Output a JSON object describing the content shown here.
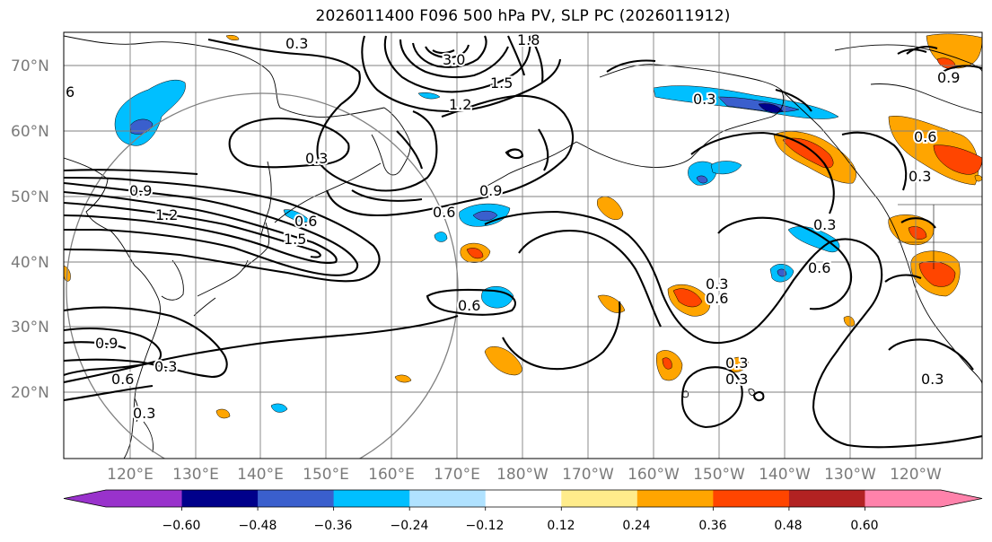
{
  "title": "2026011400 F096 500 hPa PV, SLP PC (2026011912)",
  "map": {
    "lat_ticks": [
      "70°N",
      "60°N",
      "50°N",
      "40°N",
      "30°N",
      "20°N"
    ],
    "lon_ticks": [
      "120°E",
      "130°E",
      "140°E",
      "150°E",
      "160°E",
      "170°E",
      "180°W",
      "170°W",
      "160°W",
      "150°W",
      "140°W",
      "130°W",
      "120°W"
    ],
    "contour_labels": [
      "6",
      "0.3",
      "3.0",
      "1.5",
      "1.8",
      "1.2",
      "0.3",
      "0.9",
      "1.2",
      "0.6",
      "1.5",
      "0.6",
      "0.9",
      "0.3",
      "0.6",
      "0.3",
      "0.9",
      "0.6",
      "0.3",
      "0.3",
      "0.6",
      "0.3",
      "0.6",
      "0.3",
      "0.9",
      "0.3",
      "0.6",
      "0.3",
      "0.3"
    ]
  },
  "colorbar": {
    "tick_labels": [
      "−0.60",
      "−0.48",
      "−0.36",
      "−0.24",
      "−0.12",
      "0.12",
      "0.24",
      "0.36",
      "0.48",
      "0.60"
    ],
    "colors": [
      "#9932cc",
      "#00008b",
      "#3a5fcd",
      "#00bfff",
      "#b0e2ff",
      "#ffffff",
      "#ffec8b",
      "#ffa500",
      "#ff4500",
      "#b22222",
      "#ff82ab"
    ]
  },
  "colors": {
    "contour": "#000000",
    "grid": "#7f7f7f",
    "coast": "#000000"
  }
}
